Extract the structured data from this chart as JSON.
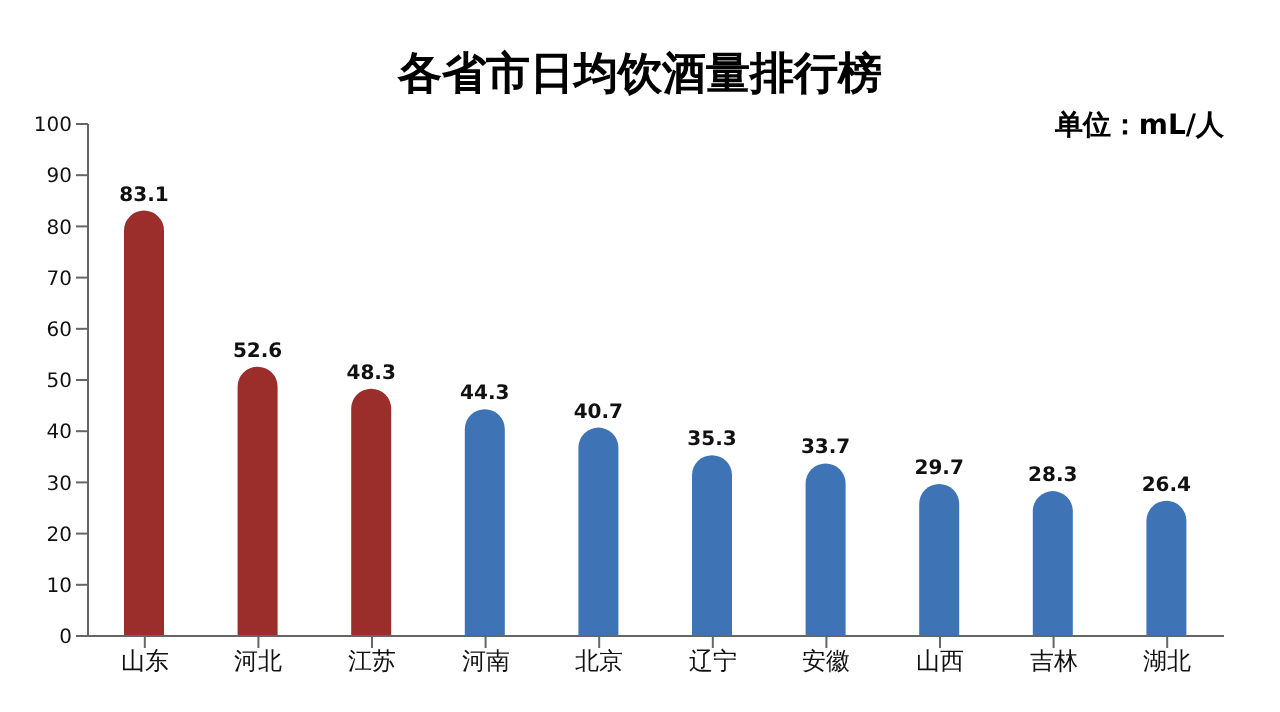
{
  "chart_data": {
    "type": "bar",
    "title": "各省市日均饮酒量排行榜",
    "annotations": [
      "单位：mL/人"
    ],
    "categories": [
      "山东",
      "河北",
      "江苏",
      "河南",
      "北京",
      "辽宁",
      "安徽",
      "山西",
      "吉林",
      "湖北"
    ],
    "values": [
      83.1,
      52.6,
      48.3,
      44.3,
      40.7,
      35.3,
      33.7,
      29.7,
      28.3,
      26.4
    ],
    "colors": [
      "#9b2e2b",
      "#9b2e2b",
      "#9b2e2b",
      "#3e73b6",
      "#3e73b6",
      "#3e73b6",
      "#3e73b6",
      "#3e73b6",
      "#3e73b6",
      "#3e73b6"
    ],
    "ylim": [
      0,
      100
    ],
    "yticks": [
      0,
      10,
      20,
      30,
      40,
      50,
      60,
      70,
      80,
      90,
      100
    ],
    "data_labels": true
  }
}
